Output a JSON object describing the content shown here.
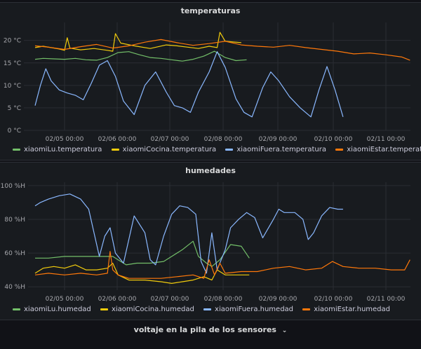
{
  "colors": {
    "green": "#73bf69",
    "yellow": "#f2cc0c",
    "blue": "#8ab8ff",
    "orange": "#ff780a",
    "grid": "#2a2d33",
    "axis_text": "#a7a8ad"
  },
  "row_voltage": {
    "label": "voltaje en la pila de los sensores",
    "chevron": "chevron-down-icon"
  },
  "chart_data": [
    {
      "type": "line",
      "title": "temperaturas",
      "x_ticks": [
        "02/05 00:00",
        "02/06 00:00",
        "02/07 00:00",
        "02/08 00:00",
        "02/09 00:00",
        "02/10 00:00",
        "02/11 00:00"
      ],
      "y_ticks": [
        "0 °C",
        "5 °C",
        "10 °C",
        "15 °C",
        "20 °C"
      ],
      "ylim": [
        0,
        24
      ],
      "series": [
        {
          "name": "xiaomiLu.temperatura",
          "color": "green",
          "x": [
            4.45,
            4.6,
            4.8,
            5.0,
            5.2,
            5.4,
            5.6,
            5.8,
            6.0,
            6.2,
            6.4,
            6.6,
            6.8,
            7.0,
            7.2,
            7.4,
            7.6,
            7.8,
            8.0,
            8.2,
            8.4
          ],
          "y": [
            15.8,
            16.0,
            15.9,
            15.8,
            16.0,
            15.7,
            15.6,
            16.2,
            17.3,
            17.5,
            16.8,
            16.2,
            16.0,
            15.7,
            15.4,
            15.8,
            16.5,
            17.6,
            16.2,
            15.5,
            15.7
          ]
        },
        {
          "name": "xiaomiCocina.temperatura",
          "color": "yellow",
          "x": [
            4.45,
            4.6,
            4.9,
            5.0,
            5.05,
            5.1,
            5.3,
            5.55,
            5.8,
            5.9,
            5.95,
            6.05,
            6.3,
            6.6,
            6.9,
            7.1,
            7.3,
            7.5,
            7.7,
            7.85,
            7.9,
            8.0,
            8.3
          ],
          "y": [
            18.4,
            18.7,
            18.1,
            17.8,
            20.6,
            18.3,
            17.9,
            18.2,
            17.8,
            17.6,
            21.5,
            19.4,
            18.8,
            18.2,
            19.0,
            18.8,
            18.5,
            18.2,
            18.7,
            18.4,
            21.8,
            19.8,
            19.5
          ]
        },
        {
          "name": "xiaomiFuera.temperatura",
          "color": "blue",
          "x": [
            4.45,
            4.55,
            4.65,
            4.75,
            4.9,
            5.05,
            5.2,
            5.35,
            5.5,
            5.65,
            5.8,
            5.95,
            6.1,
            6.3,
            6.5,
            6.7,
            6.9,
            7.05,
            7.2,
            7.35,
            7.5,
            7.7,
            7.85,
            8.0,
            8.2,
            8.35,
            8.5,
            8.7,
            8.85,
            9.0,
            9.2,
            9.4,
            9.6,
            9.75,
            9.9,
            10.05,
            10.2
          ],
          "y": [
            5.5,
            10.0,
            13.7,
            11.0,
            9.0,
            8.3,
            7.8,
            6.8,
            10.5,
            14.5,
            15.5,
            12.0,
            6.5,
            3.5,
            10.0,
            13.0,
            8.5,
            5.5,
            5.0,
            4.0,
            8.5,
            13.0,
            17.5,
            14.0,
            7.0,
            4.0,
            3.0,
            9.5,
            13.0,
            11.0,
            7.5,
            5.0,
            3.0,
            9.0,
            14.2,
            9.0,
            3.0
          ]
        },
        {
          "name": "xiaomiEstar.temperatura",
          "color": "orange",
          "x": [
            4.45,
            4.7,
            5.0,
            5.3,
            5.6,
            5.9,
            6.2,
            6.5,
            6.8,
            7.1,
            7.4,
            7.7,
            8.0,
            8.3,
            8.6,
            8.9,
            9.2,
            9.5,
            9.8,
            10.1,
            10.4,
            10.7,
            11.0,
            11.3,
            11.45
          ],
          "y": [
            18.8,
            18.5,
            18.0,
            18.6,
            19.1,
            18.3,
            18.8,
            19.6,
            20.2,
            19.5,
            18.9,
            19.3,
            19.8,
            19.0,
            18.7,
            18.5,
            18.9,
            18.4,
            18.0,
            17.6,
            17.0,
            17.2,
            16.8,
            16.3,
            15.6
          ]
        }
      ]
    },
    {
      "type": "line",
      "title": "humedades",
      "x_ticks": [
        "02/05 00:00",
        "02/06 00:00",
        "02/07 00:00",
        "02/08 00:00",
        "02/09 00:00",
        "02/10 00:00",
        "02/11 00:00"
      ],
      "y_ticks": [
        "40 %H",
        "60 %H",
        "80 %H",
        "100 %H"
      ],
      "ylim": [
        38,
        102
      ],
      "series": [
        {
          "name": "xiaomiLu.humedad",
          "color": "green",
          "x": [
            4.45,
            4.7,
            5.0,
            5.3,
            5.6,
            5.9,
            6.05,
            6.15,
            6.35,
            6.6,
            6.85,
            7.0,
            7.2,
            7.4,
            7.5,
            7.65,
            7.75,
            7.9,
            8.1,
            8.3,
            8.45
          ],
          "y": [
            57,
            57,
            58,
            58,
            58,
            58,
            55,
            53,
            54,
            54,
            55,
            58,
            62,
            67,
            58,
            54,
            52,
            56,
            65,
            64,
            57
          ]
        },
        {
          "name": "xiaomiCocina.humedad",
          "color": "yellow",
          "x": [
            4.45,
            4.6,
            4.8,
            5.0,
            5.2,
            5.4,
            5.6,
            5.8,
            5.9,
            6.0,
            6.2,
            6.5,
            6.8,
            7.0,
            7.2,
            7.4,
            7.6,
            7.75,
            7.85,
            8.0,
            8.2,
            8.45
          ],
          "y": [
            48,
            51,
            52,
            51,
            53,
            50,
            50,
            51,
            54,
            47,
            44,
            44,
            43,
            42,
            43,
            44,
            46,
            44,
            50,
            47,
            47,
            47
          ]
        },
        {
          "name": "xiaomiFuera.humedad",
          "color": "blue",
          "x": [
            4.45,
            4.55,
            4.7,
            4.9,
            5.1,
            5.3,
            5.45,
            5.55,
            5.65,
            5.75,
            5.85,
            5.95,
            6.1,
            6.3,
            6.5,
            6.6,
            6.7,
            6.85,
            7.0,
            7.15,
            7.3,
            7.45,
            7.55,
            7.65,
            7.75,
            7.85,
            8.0,
            8.1,
            8.25,
            8.4,
            8.55,
            8.7,
            8.9,
            9.0,
            9.1,
            9.3,
            9.45,
            9.55,
            9.65,
            9.8,
            9.95,
            10.1,
            10.2
          ],
          "y": [
            88,
            90,
            92,
            94,
            95,
            92,
            86,
            72,
            58,
            70,
            75,
            60,
            54,
            82,
            72,
            56,
            53,
            70,
            83,
            88,
            87,
            83,
            55,
            48,
            72,
            50,
            62,
            75,
            80,
            84,
            81,
            69,
            80,
            86,
            84,
            84,
            80,
            68,
            72,
            82,
            87,
            86,
            86
          ]
        },
        {
          "name": "xiaomiEstar.humedad",
          "color": "orange",
          "x": [
            4.45,
            4.7,
            5.0,
            5.3,
            5.6,
            5.8,
            5.85,
            5.9,
            6.0,
            6.2,
            6.5,
            6.8,
            7.1,
            7.4,
            7.6,
            7.7,
            7.8,
            7.9,
            8.0,
            8.3,
            8.6,
            8.9,
            9.2,
            9.5,
            9.8,
            10.0,
            10.2,
            10.5,
            10.8,
            11.1,
            11.35,
            11.45
          ],
          "y": [
            47,
            48,
            47,
            48,
            47,
            48,
            61,
            50,
            47,
            45,
            45,
            45,
            46,
            47,
            45,
            56,
            47,
            54,
            48,
            49,
            49,
            51,
            52,
            50,
            51,
            55,
            52,
            51,
            51,
            50,
            50,
            56
          ]
        }
      ]
    }
  ]
}
